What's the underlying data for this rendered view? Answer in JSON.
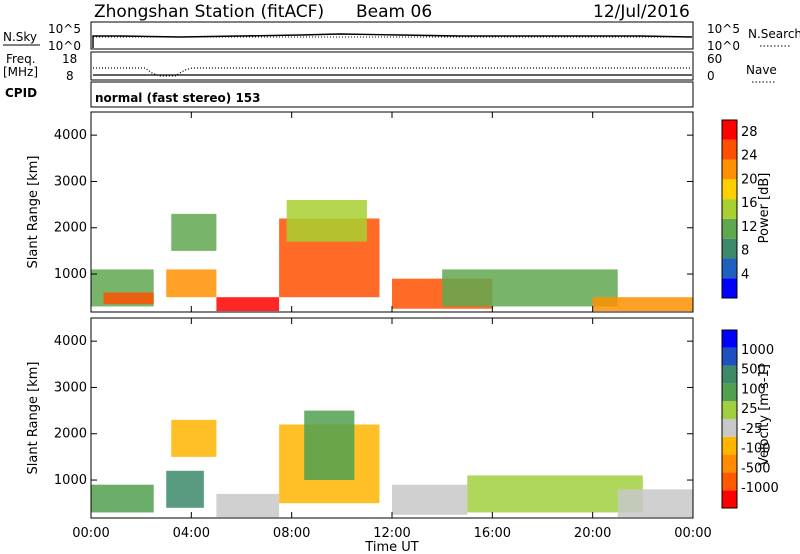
{
  "header": {
    "station": "Zhongshan Station (fitACF)",
    "beam": "Beam 06",
    "date": "12/Jul/2016"
  },
  "panel_nsky": {
    "left_label": "N.Sky",
    "left_ticks": [
      "10^5",
      "10^0"
    ],
    "right_label": "N.Search",
    "right_ticks": [
      "10^5",
      "10^0"
    ]
  },
  "panel_freq": {
    "left_label_1": "Freq.",
    "left_label_2": "[MHz]",
    "left_ticks": [
      "18",
      "8"
    ],
    "right_label": "Nave",
    "right_ticks": [
      "60",
      "0"
    ]
  },
  "cpid": {
    "label": "CPID",
    "program": "normal (fast stereo) 153"
  },
  "x_axis": {
    "label": "Time UT",
    "ticks": [
      "00:00",
      "04:00",
      "08:00",
      "12:00",
      "16:00",
      "20:00",
      "00:00"
    ]
  },
  "colors": {
    "power_scale": [
      "#0000ff",
      "#2060c0",
      "#3c8a6a",
      "#60a850",
      "#a8d030",
      "#ffd000",
      "#ff9000",
      "#ff5000",
      "#ff0000"
    ],
    "velocity_scale": [
      "#ff0000",
      "#ff5a00",
      "#ff8c00",
      "#ffb400",
      "#c8c8c8",
      "#a0d040",
      "#50a050",
      "#3c8a6a",
      "#1e50c0",
      "#0000ff"
    ]
  },
  "chart_data": [
    {
      "type": "heatmap",
      "quantity": "power",
      "ylabel": "Slant Range [km]",
      "xlabel": "Time UT",
      "xlim": [
        "00:00",
        "24:00"
      ],
      "ylim": [
        180,
        4500
      ],
      "y_ticks": [
        "1000",
        "2000",
        "3000",
        "4000"
      ],
      "colorbar": {
        "label": "Power [dB]",
        "ticks": [
          "4",
          "8",
          "12",
          "16",
          "20",
          "24",
          "28"
        ],
        "range": [
          0,
          30
        ]
      },
      "regions": [
        {
          "t": [
            0.0,
            2.5
          ],
          "r": [
            300,
            1100
          ],
          "value": 12
        },
        {
          "t": [
            0.5,
            2.5
          ],
          "r": [
            350,
            600
          ],
          "value": 26
        },
        {
          "t": [
            3.0,
            5.0
          ],
          "r": [
            500,
            1100
          ],
          "value": 20
        },
        {
          "t": [
            3.2,
            5.0
          ],
          "r": [
            1500,
            2300
          ],
          "value": 11
        },
        {
          "t": [
            5.0,
            7.5
          ],
          "r": [
            200,
            500
          ],
          "value": 27
        },
        {
          "t": [
            7.5,
            11.5
          ],
          "r": [
            500,
            2200
          ],
          "value": 24
        },
        {
          "t": [
            7.8,
            11.0
          ],
          "r": [
            1700,
            2600
          ],
          "value": 14
        },
        {
          "t": [
            12.0,
            16.0
          ],
          "r": [
            250,
            900
          ],
          "value": 26
        },
        {
          "t": [
            14.0,
            21.0
          ],
          "r": [
            300,
            1100
          ],
          "value": 11
        },
        {
          "t": [
            20.0,
            24.0
          ],
          "r": [
            200,
            500
          ],
          "value": 22
        }
      ]
    },
    {
      "type": "heatmap",
      "quantity": "velocity",
      "ylabel": "Slant Range [km]",
      "xlabel": "Time UT",
      "xlim": [
        "00:00",
        "24:00"
      ],
      "ylim": [
        180,
        4500
      ],
      "y_ticks": [
        "1000",
        "2000",
        "3000",
        "4000"
      ],
      "colorbar": {
        "label": "Velocity [m s-1]",
        "ticks": [
          "1000",
          "500",
          "100",
          "25",
          "-25",
          "-100",
          "-500",
          "-1000"
        ],
        "range": [
          -1000,
          1000
        ]
      },
      "regions": [
        {
          "t": [
            0.0,
            2.5
          ],
          "r": [
            300,
            900
          ],
          "value": 300
        },
        {
          "t": [
            3.0,
            4.5
          ],
          "r": [
            400,
            1200
          ],
          "value": 500
        },
        {
          "t": [
            3.2,
            5.0
          ],
          "r": [
            1500,
            2300
          ],
          "value": -300
        },
        {
          "t": [
            5.0,
            7.5
          ],
          "r": [
            200,
            700
          ],
          "value": -150
        },
        {
          "t": [
            7.5,
            11.5
          ],
          "r": [
            500,
            2200
          ],
          "value": -250
        },
        {
          "t": [
            8.5,
            10.5
          ],
          "r": [
            1000,
            2500
          ],
          "value": 200
        },
        {
          "t": [
            12.0,
            15.0
          ],
          "r": [
            250,
            900
          ],
          "value": -150
        },
        {
          "t": [
            15.0,
            22.0
          ],
          "r": [
            300,
            1100
          ],
          "value": 0
        },
        {
          "t": [
            21.0,
            24.0
          ],
          "r": [
            200,
            800
          ],
          "value": -120
        }
      ]
    }
  ]
}
